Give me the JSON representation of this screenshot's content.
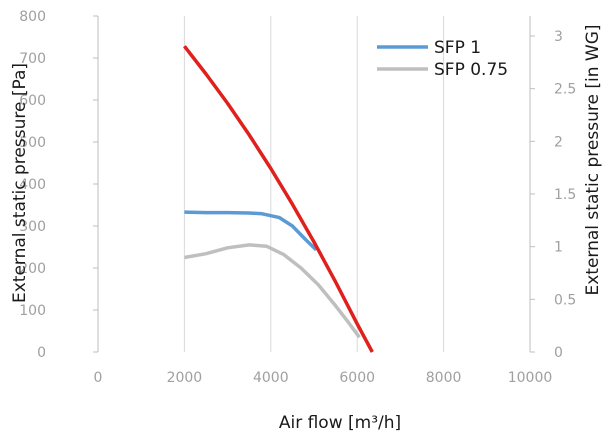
{
  "chart_data": {
    "type": "line",
    "xlabel": "Air flow [m³/h]",
    "ylabel_left": "External static pressure [Pa]",
    "ylabel_right": "External static pressure [in WG]",
    "xlim": [
      0,
      10000
    ],
    "ylim_left": [
      0,
      800
    ],
    "ylim_right": [
      0,
      3.212
    ],
    "grid": "vertical",
    "legend_position": "top-right",
    "x_ticks": [
      0,
      2000,
      4000,
      6000,
      8000,
      10000
    ],
    "y_ticks_left": [
      0,
      100,
      200,
      300,
      400,
      500,
      600,
      700,
      800
    ],
    "y_ticks_right": [
      0,
      0.5,
      1,
      1.5,
      2,
      2.5,
      3
    ],
    "series": [
      {
        "name": "SFP 1",
        "color": "#5b9bd5",
        "x": [
          2000,
          2500,
          3000,
          3500,
          3800,
          4200,
          4500,
          4800,
          5050
        ],
        "y": [
          333,
          332,
          332,
          331,
          329,
          320,
          300,
          268,
          243
        ]
      },
      {
        "name": "SFP 0.75",
        "color": "#bfbfbf",
        "x": [
          2000,
          2500,
          3000,
          3500,
          3900,
          4300,
          4700,
          5100,
          5500,
          5800,
          6050
        ],
        "y": [
          225,
          234,
          248,
          255,
          252,
          232,
          200,
          160,
          110,
          70,
          35
        ]
      },
      {
        "color": "#e0201c",
        "x": [
          2000,
          2500,
          3000,
          3500,
          4000,
          4500,
          5000,
          5500,
          6000,
          6350
        ],
        "y": [
          728,
          662,
          592,
          517,
          437,
          352,
          262,
          167,
          67,
          0
        ]
      }
    ]
  }
}
